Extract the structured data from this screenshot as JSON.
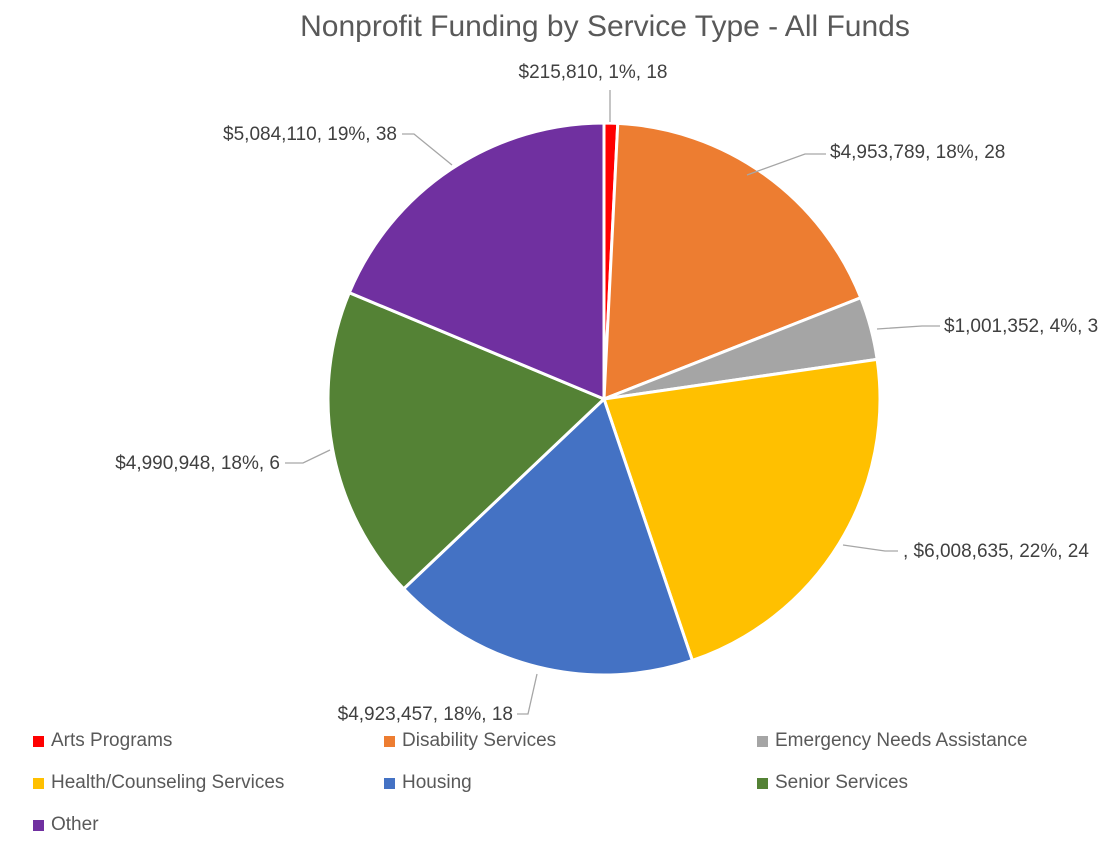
{
  "chart_data": {
    "type": "pie",
    "title": "Nonprofit Funding by Service Type - All Funds",
    "slices": [
      {
        "name": "Arts Programs",
        "value": 215810,
        "label": "$215,810, 1%, 18",
        "color": "#ff0000"
      },
      {
        "name": "Disability Services",
        "value": 4953789,
        "label": "$4,953,789, 18%, 28",
        "color": "#ed7d31"
      },
      {
        "name": "Emergency Needs Assistance",
        "value": 1001352,
        "label": "$1,001,352, 4%, 3",
        "color": "#a5a5a5"
      },
      {
        "name": "Health/Counseling Services",
        "value": 6008635,
        "label": ", $6,008,635, 22%, 24",
        "color": "#ffc000"
      },
      {
        "name": "Housing",
        "value": 4923457,
        "label": "$4,923,457, 18%, 18",
        "color": "#4472c4"
      },
      {
        "name": "Senior Services",
        "value": 4990948,
        "label": "$4,990,948, 18%, 6",
        "color": "#548235"
      },
      {
        "name": "Other",
        "value": 5084110,
        "label": "$5,084,110, 19%, 38",
        "color": "#7030a0"
      }
    ],
    "legend_position": "bottom"
  }
}
